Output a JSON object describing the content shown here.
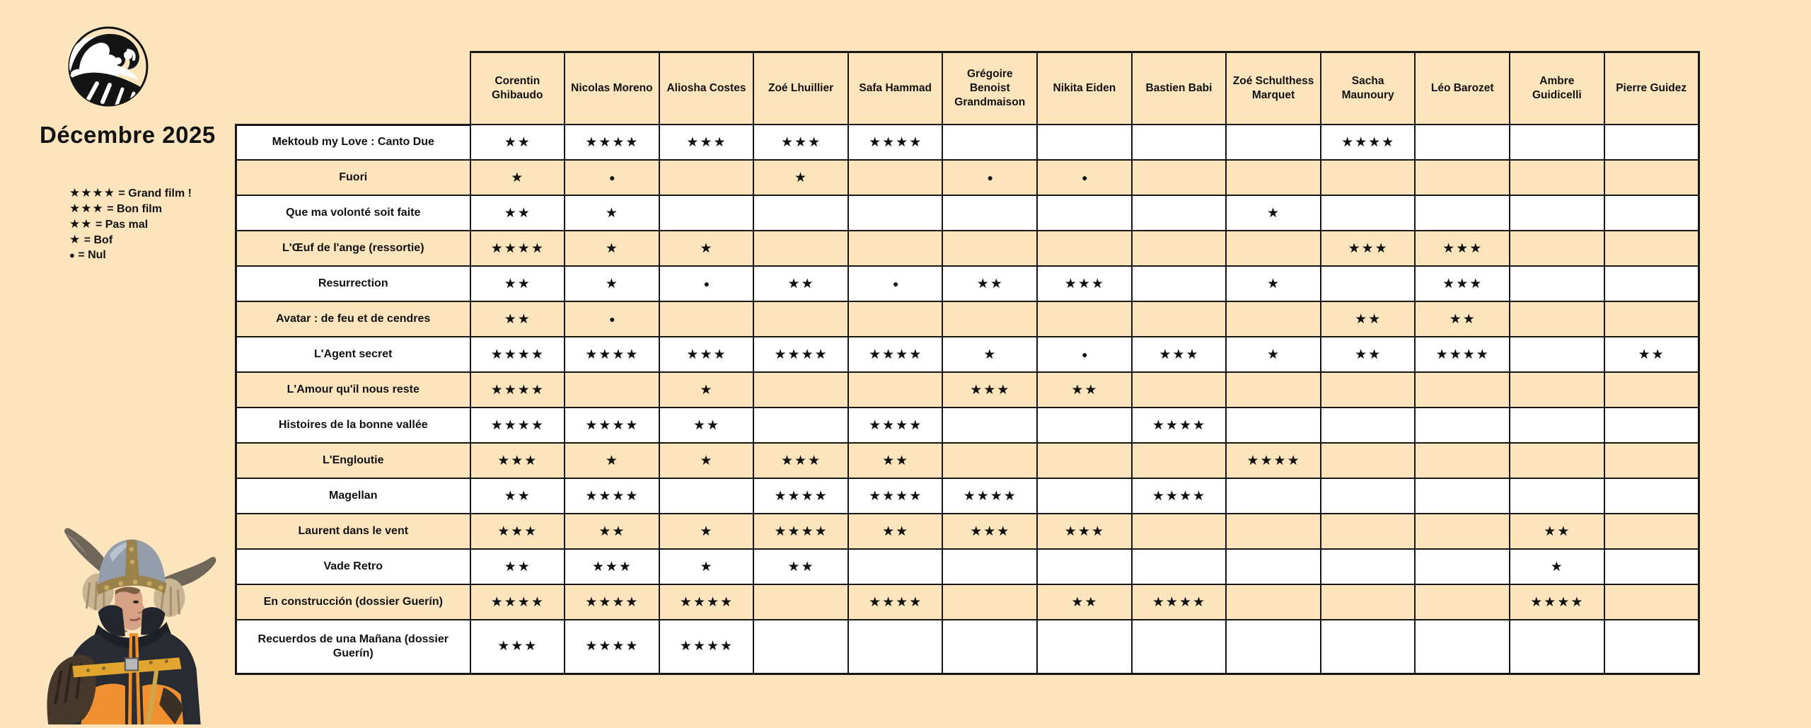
{
  "page": {
    "title": "Décembre 2025"
  },
  "colors": {
    "background": "#fce5bd",
    "row_white": "#ffffff",
    "row_peach": "#fce5bd",
    "border": "#161616",
    "text": "#121212",
    "jacket_orange": "#f09030",
    "strap_yellow": "#e2a52f"
  },
  "logo": {
    "name": "wave-logo"
  },
  "legend": {
    "items": [
      {
        "symbol": "★★★★",
        "label": "= Grand film !"
      },
      {
        "symbol": "★★★",
        "label": "= Bon film"
      },
      {
        "symbol": "★★",
        "label": "= Pas mal"
      },
      {
        "symbol": "★",
        "label": "= Bof"
      },
      {
        "symbol": "●",
        "label": "= Nul"
      }
    ]
  },
  "chart_data": {
    "type": "table",
    "title": "Décembre 2025",
    "symbols": {
      "star": "★",
      "nul": "●"
    },
    "rating_scale": {
      "4": "Grand film !",
      "3": "Bon film",
      "2": "Pas mal",
      "1": "Bof",
      "0": "Nul"
    },
    "columns": [
      "Corentin Ghibaudo",
      "Nicolas Moreno",
      "Aliosha Costes",
      "Zoé Lhuillier",
      "Safa Hammad",
      "Grégoire Benoist Grandmaison",
      "Nikita Eiden",
      "Bastien Babi",
      "Zoé Schulthess Marquet",
      "Sacha Maunoury",
      "Léo Barozet",
      "Ambre Guidicelli",
      "Pierre Guidez"
    ],
    "rows": [
      {
        "film": "Mektoub my Love : Canto Due",
        "ratings": [
          2,
          4,
          3,
          3,
          4,
          null,
          null,
          null,
          null,
          4,
          null,
          null,
          null
        ]
      },
      {
        "film": "Fuori",
        "ratings": [
          1,
          0,
          null,
          1,
          null,
          0,
          0,
          null,
          null,
          null,
          null,
          null,
          null
        ]
      },
      {
        "film": "Que ma volonté soit faite",
        "ratings": [
          2,
          1,
          null,
          null,
          null,
          null,
          null,
          null,
          1,
          null,
          null,
          null,
          null
        ]
      },
      {
        "film": "L'Œuf de l'ange (ressortie)",
        "ratings": [
          4,
          1,
          1,
          null,
          null,
          null,
          null,
          null,
          null,
          3,
          3,
          null,
          null
        ]
      },
      {
        "film": "Resurrection",
        "ratings": [
          2,
          1,
          0,
          2,
          0,
          2,
          3,
          null,
          1,
          null,
          3,
          null,
          null
        ]
      },
      {
        "film": "Avatar : de feu et de cendres",
        "ratings": [
          2,
          0,
          null,
          null,
          null,
          null,
          null,
          null,
          null,
          2,
          2,
          null,
          null
        ]
      },
      {
        "film": "L'Agent secret",
        "ratings": [
          4,
          4,
          3,
          4,
          4,
          1,
          0,
          3,
          1,
          2,
          4,
          null,
          2
        ]
      },
      {
        "film": "L'Amour qu'il nous reste",
        "ratings": [
          4,
          null,
          1,
          null,
          null,
          3,
          2,
          null,
          null,
          null,
          null,
          null,
          null
        ]
      },
      {
        "film": "Histoires de la bonne vallée",
        "ratings": [
          4,
          4,
          2,
          null,
          4,
          null,
          null,
          4,
          null,
          null,
          null,
          null,
          null
        ]
      },
      {
        "film": "L'Engloutie",
        "ratings": [
          3,
          1,
          1,
          3,
          2,
          null,
          null,
          null,
          4,
          null,
          null,
          null,
          null
        ]
      },
      {
        "film": "Magellan",
        "ratings": [
          2,
          4,
          null,
          4,
          4,
          4,
          null,
          4,
          null,
          null,
          null,
          null,
          null
        ]
      },
      {
        "film": "Laurent dans le vent",
        "ratings": [
          3,
          2,
          1,
          4,
          2,
          3,
          3,
          null,
          null,
          null,
          null,
          2,
          null
        ]
      },
      {
        "film": "Vade Retro",
        "ratings": [
          2,
          3,
          1,
          2,
          null,
          null,
          null,
          null,
          null,
          null,
          null,
          1,
          null
        ]
      },
      {
        "film": "En construcción (dossier Guerín)",
        "ratings": [
          4,
          4,
          4,
          null,
          4,
          null,
          2,
          4,
          null,
          null,
          null,
          4,
          null
        ]
      },
      {
        "film": "Recuerdos de una Mañana (dossier Guerín)",
        "ratings": [
          3,
          4,
          4,
          null,
          null,
          null,
          null,
          null,
          null,
          null,
          null,
          null,
          null
        ]
      }
    ]
  }
}
